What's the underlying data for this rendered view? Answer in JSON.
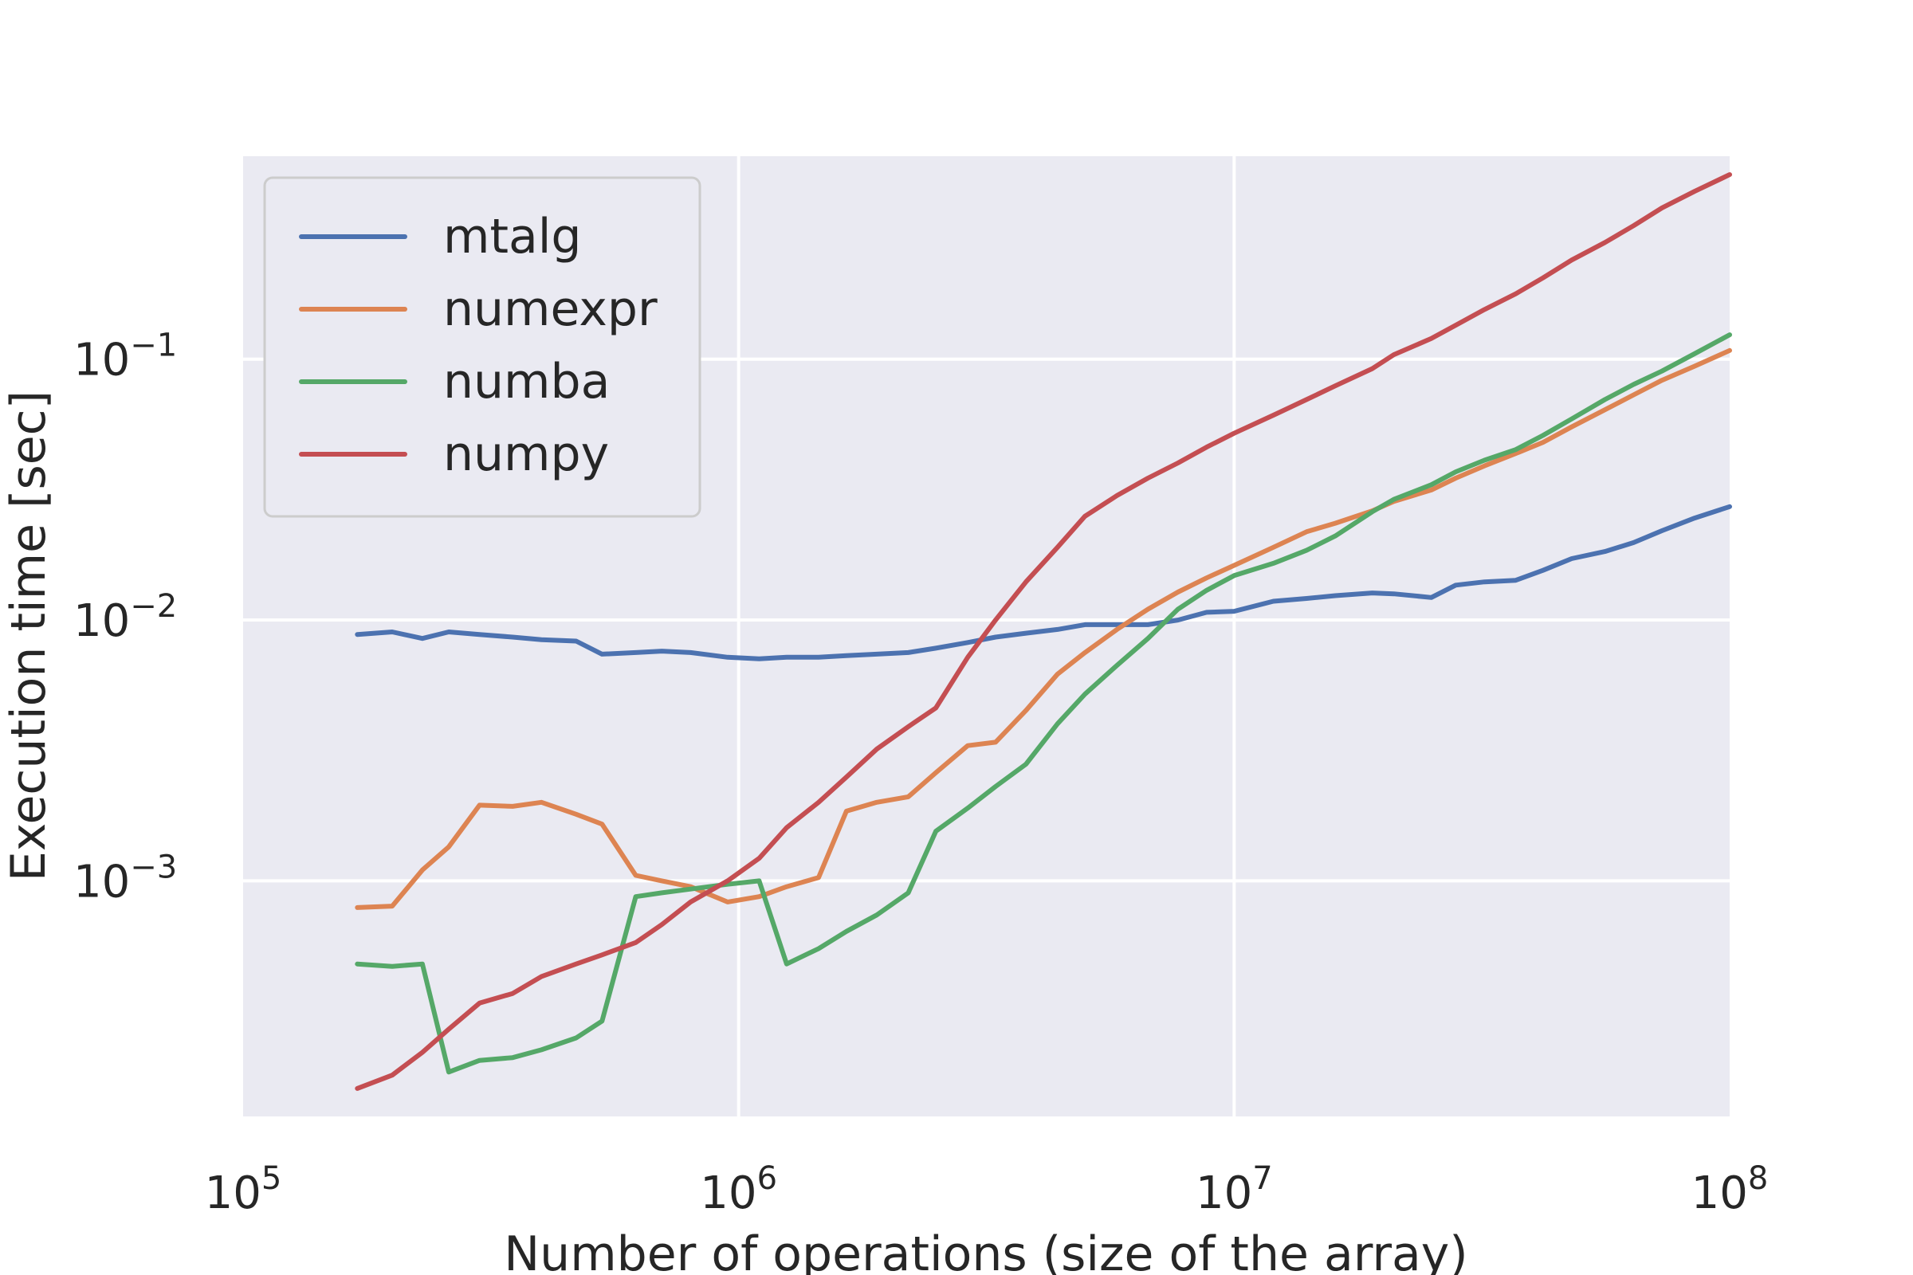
{
  "chart_data": {
    "type": "line",
    "title": "",
    "xlabel": "Number of operations (size of the array)",
    "ylabel": "Execution time [sec]",
    "xscale": "log",
    "yscale": "log",
    "xlim": [
      100000,
      100000000
    ],
    "ylim": [
      0.000125,
      0.6
    ],
    "x_ticks": [
      {
        "value": 100000,
        "base": "10",
        "exp": "5"
      },
      {
        "value": 1000000,
        "base": "10",
        "exp": "6"
      },
      {
        "value": 10000000,
        "base": "10",
        "exp": "7"
      },
      {
        "value": 100000000,
        "base": "10",
        "exp": "8"
      }
    ],
    "y_ticks": [
      {
        "value": 0.001,
        "base": "10",
        "exp": "−3"
      },
      {
        "value": 0.01,
        "base": "10",
        "exp": "−2"
      },
      {
        "value": 0.1,
        "base": "10",
        "exp": "−1"
      }
    ],
    "grid": true,
    "legend_position": "top-left",
    "series": [
      {
        "name": "mtalg",
        "color": "#4c72b0",
        "points": [
          [
            170000,
            0.0088
          ],
          [
            200000,
            0.009
          ],
          [
            230000,
            0.0085
          ],
          [
            260000,
            0.009
          ],
          [
            300000,
            0.0088
          ],
          [
            350000,
            0.0086
          ],
          [
            400000,
            0.0084
          ],
          [
            470000,
            0.0083
          ],
          [
            530000,
            0.0074
          ],
          [
            620000,
            0.0075
          ],
          [
            700000,
            0.0076
          ],
          [
            800000,
            0.0075
          ],
          [
            950000,
            0.0072
          ],
          [
            1100000,
            0.0071
          ],
          [
            1250000,
            0.0072
          ],
          [
            1450000,
            0.0072
          ],
          [
            1650000,
            0.0073
          ],
          [
            1900000,
            0.0074
          ],
          [
            2200000,
            0.0075
          ],
          [
            2500000,
            0.0078
          ],
          [
            2900000,
            0.0082
          ],
          [
            3300000,
            0.0086
          ],
          [
            3800000,
            0.0089
          ],
          [
            4400000,
            0.0092
          ],
          [
            5000000,
            0.0096
          ],
          [
            5800000,
            0.0096
          ],
          [
            6700000,
            0.0096
          ],
          [
            7700000,
            0.01
          ],
          [
            8800000,
            0.0107
          ],
          [
            10000000,
            0.0108
          ],
          [
            12000000,
            0.0118
          ],
          [
            14000000,
            0.0121
          ],
          [
            16000000,
            0.0124
          ],
          [
            19000000,
            0.0127
          ],
          [
            21000000,
            0.0126
          ],
          [
            25000000,
            0.0122
          ],
          [
            28000000,
            0.0136
          ],
          [
            32000000,
            0.014
          ],
          [
            37000000,
            0.0142
          ],
          [
            42000000,
            0.0155
          ],
          [
            48000000,
            0.0172
          ],
          [
            56000000,
            0.0183
          ],
          [
            64000000,
            0.0198
          ],
          [
            73000000,
            0.022
          ],
          [
            85000000,
            0.0246
          ],
          [
            100000000,
            0.0272
          ]
        ]
      },
      {
        "name": "numexpr",
        "color": "#dd8452",
        "points": [
          [
            170000,
            0.00079
          ],
          [
            200000,
            0.0008
          ],
          [
            230000,
            0.0011
          ],
          [
            260000,
            0.00135
          ],
          [
            300000,
            0.00195
          ],
          [
            350000,
            0.00193
          ],
          [
            400000,
            0.002
          ],
          [
            470000,
            0.0018
          ],
          [
            530000,
            0.00165
          ],
          [
            620000,
            0.00105
          ],
          [
            700000,
            0.001
          ],
          [
            800000,
            0.00095
          ],
          [
            950000,
            0.00083
          ],
          [
            1100000,
            0.00087
          ],
          [
            1250000,
            0.00095
          ],
          [
            1450000,
            0.00103
          ],
          [
            1650000,
            0.00185
          ],
          [
            1900000,
            0.002
          ],
          [
            2200000,
            0.0021
          ],
          [
            2500000,
            0.0026
          ],
          [
            2900000,
            0.0033
          ],
          [
            3300000,
            0.0034
          ],
          [
            3800000,
            0.0045
          ],
          [
            4400000,
            0.0062
          ],
          [
            5000000,
            0.0075
          ],
          [
            5800000,
            0.0092
          ],
          [
            6700000,
            0.011
          ],
          [
            7700000,
            0.0128
          ],
          [
            8800000,
            0.0145
          ],
          [
            10000000,
            0.0162
          ],
          [
            12000000,
            0.019
          ],
          [
            14000000,
            0.0218
          ],
          [
            16000000,
            0.0235
          ],
          [
            19000000,
            0.0262
          ],
          [
            21000000,
            0.0285
          ],
          [
            25000000,
            0.0315
          ],
          [
            28000000,
            0.035
          ],
          [
            32000000,
            0.039
          ],
          [
            37000000,
            0.0435
          ],
          [
            42000000,
            0.048
          ],
          [
            48000000,
            0.055
          ],
          [
            56000000,
            0.064
          ],
          [
            64000000,
            0.073
          ],
          [
            73000000,
            0.083
          ],
          [
            85000000,
            0.094
          ],
          [
            100000000,
            0.108
          ]
        ]
      },
      {
        "name": "numba",
        "color": "#55a868",
        "points": [
          [
            170000,
            0.00048
          ],
          [
            200000,
            0.00047
          ],
          [
            230000,
            0.00048
          ],
          [
            260000,
            0.000185
          ],
          [
            300000,
            0.000205
          ],
          [
            350000,
            0.00021
          ],
          [
            400000,
            0.000225
          ],
          [
            470000,
            0.00025
          ],
          [
            530000,
            0.00029
          ],
          [
            620000,
            0.00087
          ],
          [
            700000,
            0.0009
          ],
          [
            800000,
            0.00093
          ],
          [
            950000,
            0.00097
          ],
          [
            1100000,
            0.001
          ],
          [
            1250000,
            0.00048
          ],
          [
            1450000,
            0.00055
          ],
          [
            1650000,
            0.00064
          ],
          [
            1900000,
            0.00074
          ],
          [
            2200000,
            0.0009
          ],
          [
            2500000,
            0.00155
          ],
          [
            2900000,
            0.0019
          ],
          [
            3300000,
            0.0023
          ],
          [
            3800000,
            0.0028
          ],
          [
            4400000,
            0.004
          ],
          [
            5000000,
            0.0052
          ],
          [
            5800000,
            0.0067
          ],
          [
            6700000,
            0.0085
          ],
          [
            7700000,
            0.011
          ],
          [
            8800000,
            0.013
          ],
          [
            10000000,
            0.0148
          ],
          [
            12000000,
            0.0165
          ],
          [
            14000000,
            0.0185
          ],
          [
            16000000,
            0.021
          ],
          [
            19000000,
            0.026
          ],
          [
            21000000,
            0.029
          ],
          [
            25000000,
            0.033
          ],
          [
            28000000,
            0.037
          ],
          [
            32000000,
            0.041
          ],
          [
            37000000,
            0.045
          ],
          [
            42000000,
            0.051
          ],
          [
            48000000,
            0.059
          ],
          [
            56000000,
            0.07
          ],
          [
            64000000,
            0.08
          ],
          [
            73000000,
            0.09
          ],
          [
            85000000,
            0.105
          ],
          [
            100000000,
            0.124
          ]
        ]
      },
      {
        "name": "numpy",
        "color": "#c44e52",
        "points": [
          [
            170000,
            0.00016
          ],
          [
            200000,
            0.00018
          ],
          [
            230000,
            0.00022
          ],
          [
            260000,
            0.00027
          ],
          [
            300000,
            0.00034
          ],
          [
            350000,
            0.00037
          ],
          [
            400000,
            0.00043
          ],
          [
            470000,
            0.00048
          ],
          [
            530000,
            0.00052
          ],
          [
            620000,
            0.00058
          ],
          [
            700000,
            0.00068
          ],
          [
            800000,
            0.00083
          ],
          [
            950000,
            0.001
          ],
          [
            1100000,
            0.00122
          ],
          [
            1250000,
            0.0016
          ],
          [
            1450000,
            0.002
          ],
          [
            1650000,
            0.0025
          ],
          [
            1900000,
            0.0032
          ],
          [
            2200000,
            0.0039
          ],
          [
            2500000,
            0.0046
          ],
          [
            2900000,
            0.0072
          ],
          [
            3300000,
            0.01
          ],
          [
            3800000,
            0.014
          ],
          [
            4400000,
            0.019
          ],
          [
            5000000,
            0.025
          ],
          [
            5800000,
            0.03
          ],
          [
            6700000,
            0.035
          ],
          [
            7700000,
            0.04
          ],
          [
            8800000,
            0.046
          ],
          [
            10000000,
            0.052
          ],
          [
            12000000,
            0.061
          ],
          [
            14000000,
            0.07
          ],
          [
            16000000,
            0.079
          ],
          [
            19000000,
            0.092
          ],
          [
            21000000,
            0.104
          ],
          [
            25000000,
            0.12
          ],
          [
            28000000,
            0.135
          ],
          [
            32000000,
            0.155
          ],
          [
            37000000,
            0.178
          ],
          [
            42000000,
            0.205
          ],
          [
            48000000,
            0.24
          ],
          [
            56000000,
            0.28
          ],
          [
            64000000,
            0.325
          ],
          [
            73000000,
            0.38
          ],
          [
            85000000,
            0.44
          ],
          [
            100000000,
            0.51
          ]
        ]
      }
    ]
  }
}
